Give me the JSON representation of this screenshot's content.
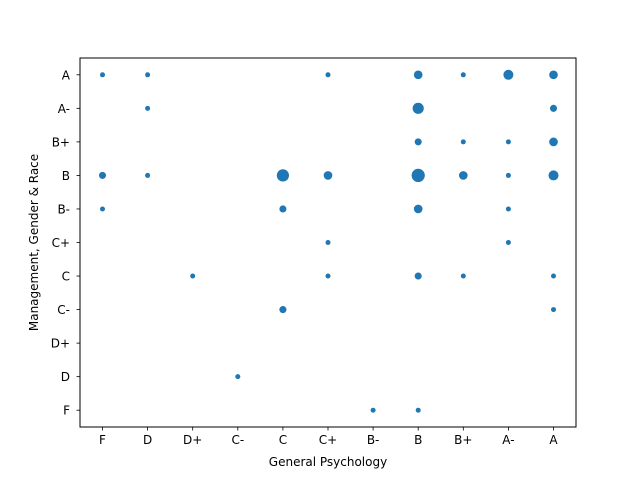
{
  "chart_data": {
    "type": "scatter",
    "xlabel": "General Psychology",
    "ylabel": "Management, Gender & Race",
    "x_categories": [
      "F",
      "D",
      "D+",
      "C-",
      "C",
      "C+",
      "B-",
      "B",
      "B+",
      "A-",
      "A"
    ],
    "y_categories": [
      "F",
      "D",
      "D+",
      "C-",
      "C",
      "C+",
      "B-",
      "B",
      "B+",
      "A-",
      "A"
    ],
    "marker_color": "#1f77b4",
    "grid": false,
    "legend": "none",
    "size_note": "marker area proportional to count",
    "points": [
      {
        "x": "F",
        "y": "A",
        "count": 1
      },
      {
        "x": "F",
        "y": "B",
        "count": 2
      },
      {
        "x": "F",
        "y": "B-",
        "count": 1
      },
      {
        "x": "D",
        "y": "A",
        "count": 1
      },
      {
        "x": "D",
        "y": "A-",
        "count": 1
      },
      {
        "x": "D",
        "y": "B",
        "count": 1
      },
      {
        "x": "D+",
        "y": "C",
        "count": 1
      },
      {
        "x": "C-",
        "y": "D",
        "count": 1
      },
      {
        "x": "C",
        "y": "B",
        "count": 6
      },
      {
        "x": "C",
        "y": "B-",
        "count": 2
      },
      {
        "x": "C",
        "y": "C-",
        "count": 2
      },
      {
        "x": "C+",
        "y": "A",
        "count": 1
      },
      {
        "x": "C+",
        "y": "B",
        "count": 3
      },
      {
        "x": "C+",
        "y": "C+",
        "count": 1
      },
      {
        "x": "C+",
        "y": "C",
        "count": 1
      },
      {
        "x": "B-",
        "y": "F",
        "count": 1
      },
      {
        "x": "B",
        "y": "A",
        "count": 3
      },
      {
        "x": "B",
        "y": "A-",
        "count": 5
      },
      {
        "x": "B",
        "y": "B+",
        "count": 2
      },
      {
        "x": "B",
        "y": "B",
        "count": 7
      },
      {
        "x": "B",
        "y": "B-",
        "count": 3
      },
      {
        "x": "B",
        "y": "C",
        "count": 2
      },
      {
        "x": "B",
        "y": "F",
        "count": 1
      },
      {
        "x": "B+",
        "y": "A",
        "count": 1
      },
      {
        "x": "B+",
        "y": "B+",
        "count": 1
      },
      {
        "x": "B+",
        "y": "B",
        "count": 3
      },
      {
        "x": "B+",
        "y": "C",
        "count": 1
      },
      {
        "x": "A-",
        "y": "A",
        "count": 4
      },
      {
        "x": "A-",
        "y": "B+",
        "count": 1
      },
      {
        "x": "A-",
        "y": "B",
        "count": 1
      },
      {
        "x": "A-",
        "y": "B-",
        "count": 1
      },
      {
        "x": "A-",
        "y": "C+",
        "count": 1
      },
      {
        "x": "A",
        "y": "A",
        "count": 3
      },
      {
        "x": "A",
        "y": "A-",
        "count": 2
      },
      {
        "x": "A",
        "y": "B+",
        "count": 3
      },
      {
        "x": "A",
        "y": "B",
        "count": 4
      },
      {
        "x": "A",
        "y": "C",
        "count": 1
      },
      {
        "x": "A",
        "y": "C-",
        "count": 1
      }
    ]
  }
}
